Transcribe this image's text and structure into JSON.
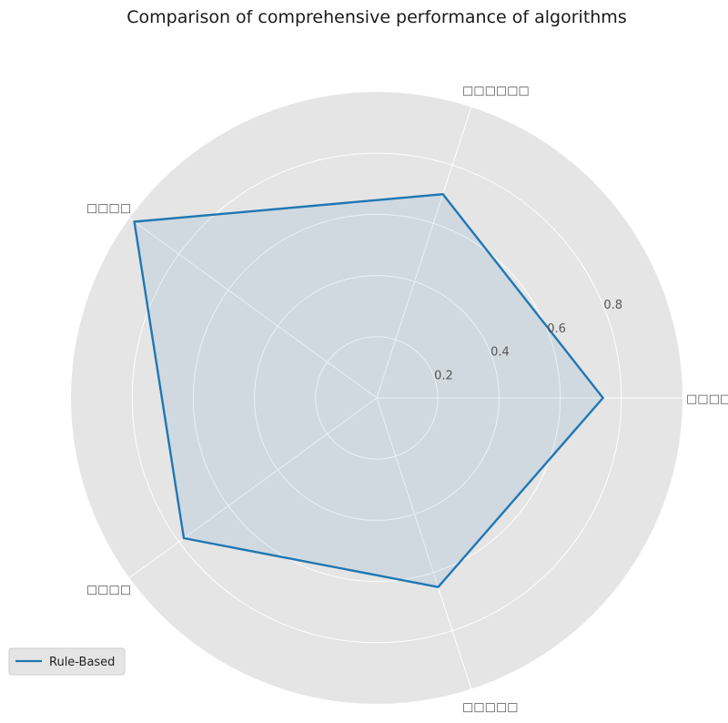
{
  "chart_data": {
    "type": "radar",
    "title": "Comparison of comprehensive performance of algorithms",
    "axes": [
      "□□□□□",
      "□□□□□□",
      "□□□□",
      "□□□□",
      "□□□□□"
    ],
    "rlim": [
      0,
      1.0
    ],
    "rticks": [
      0.2,
      0.4,
      0.6,
      0.8
    ],
    "rtick_labels": [
      "0.2",
      "0.4",
      "0.6",
      "0.8"
    ],
    "grid": true,
    "legend": "lower-left",
    "series": [
      {
        "name": "Rule-Based",
        "values": [
          0.74,
          0.7,
          0.98,
          0.78,
          0.65
        ],
        "color": "#1f77b4"
      }
    ]
  }
}
